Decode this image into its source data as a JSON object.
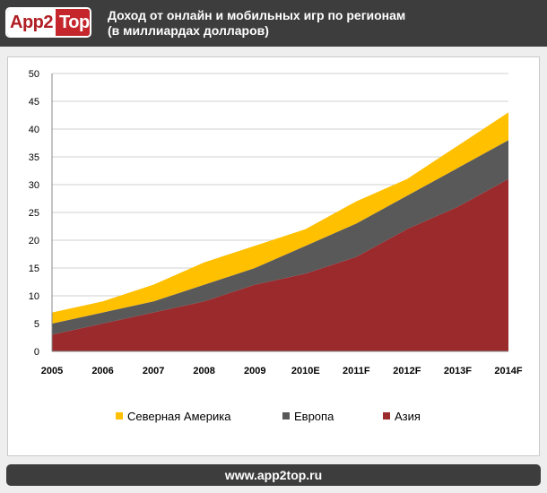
{
  "header": {
    "logo_part1": "App2",
    "logo_part2": "Top",
    "title_line1": "Доход от онлайн и мобильных игр по регионам",
    "title_line2": "(в миллиардах долларов)"
  },
  "footer": {
    "url": "www.app2top.ru"
  },
  "chart_data": {
    "type": "area",
    "stacked": true,
    "title": "Доход от онлайн и мобильных игр по регионам (в миллиардах долларов)",
    "xlabel": "",
    "ylabel": "",
    "ylim": [
      0,
      50
    ],
    "yticks": [
      0,
      5,
      10,
      15,
      20,
      25,
      30,
      35,
      40,
      45,
      50
    ],
    "grid": true,
    "legend_position": "bottom",
    "categories": [
      "2005",
      "2006",
      "2007",
      "2008",
      "2009",
      "2010E",
      "2011F",
      "2012F",
      "2013F",
      "2014F"
    ],
    "series": [
      {
        "name": "Азия",
        "color": "#9b2a2c",
        "values": [
          3,
          5,
          7,
          9,
          12,
          14,
          17,
          22,
          26,
          31
        ]
      },
      {
        "name": "Европа",
        "color": "#595959",
        "values": [
          2,
          2,
          2,
          3,
          3,
          5,
          6,
          6,
          7,
          7
        ]
      },
      {
        "name": "Северная Америка",
        "color": "#ffc000",
        "values": [
          2,
          2,
          3,
          4,
          4,
          3,
          4,
          3,
          4,
          5
        ]
      }
    ],
    "legend_order": [
      "Северная Америка",
      "Европа",
      "Азия"
    ]
  }
}
